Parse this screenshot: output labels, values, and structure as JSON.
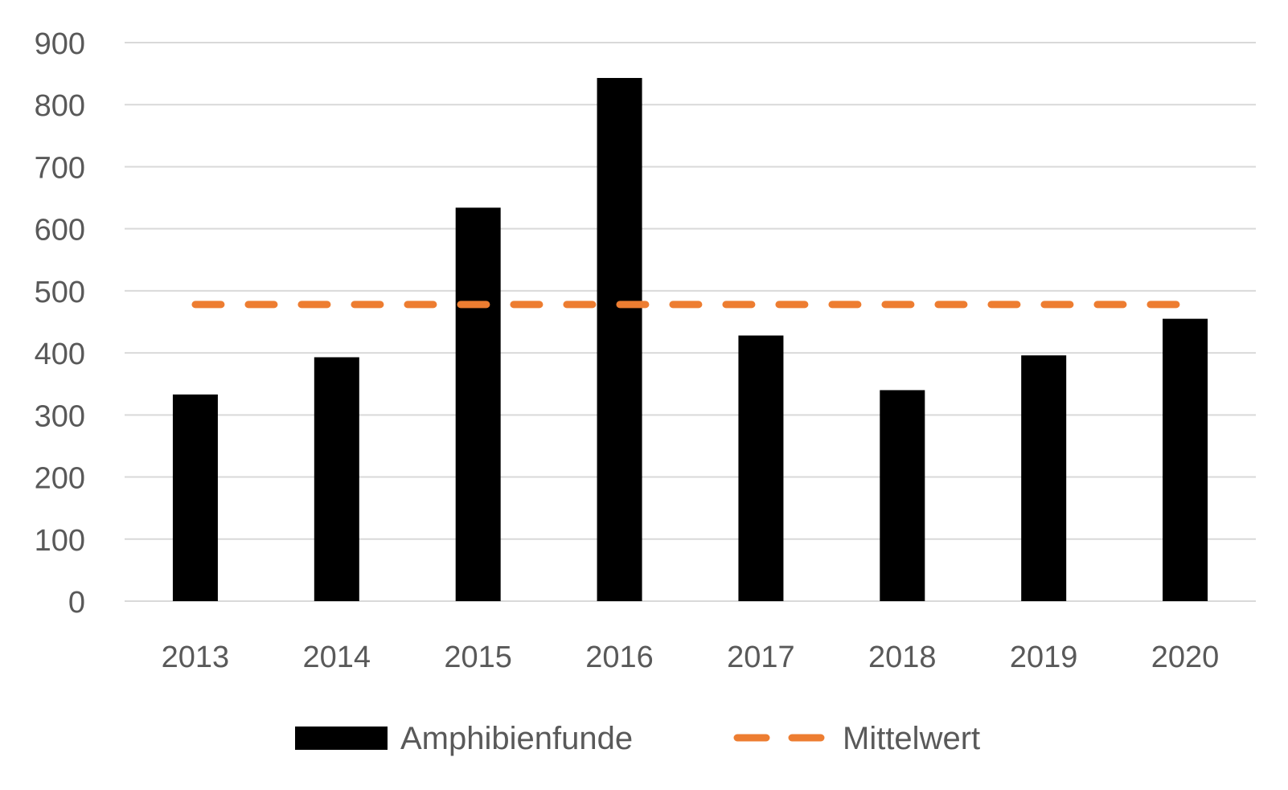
{
  "chart_data": {
    "type": "bar",
    "categories": [
      "2013",
      "2014",
      "2015",
      "2016",
      "2017",
      "2018",
      "2019",
      "2020"
    ],
    "series": [
      {
        "name": "Amphibienfunde",
        "type": "bar",
        "values": [
          333,
          393,
          634,
          843,
          428,
          340,
          396,
          455
        ],
        "color": "#000000"
      },
      {
        "name": "Mittelwert",
        "type": "line",
        "style": "dashed",
        "values": [
          478,
          478,
          478,
          478,
          478,
          478,
          478,
          478
        ],
        "color": "#ED7D31"
      }
    ],
    "yticks": [
      "0",
      "100",
      "200",
      "300",
      "400",
      "500",
      "600",
      "700",
      "800",
      "900"
    ],
    "ylim": [
      0,
      900
    ],
    "grid": true,
    "gridColor": "#D9D9D9",
    "legend_position": "bottom"
  }
}
